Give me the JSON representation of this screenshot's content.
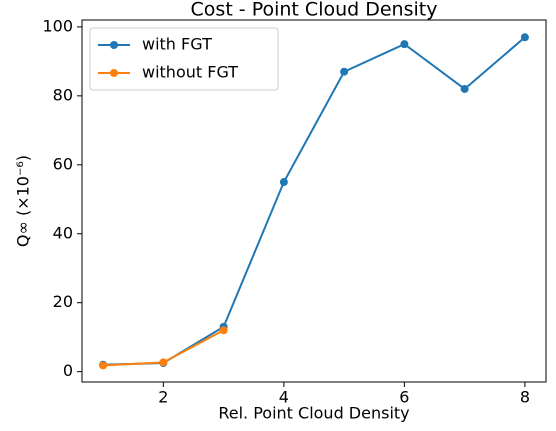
{
  "chart_data": {
    "type": "line",
    "title": "Cost - Point Cloud Density",
    "xlabel": "Rel. Point Cloud Density",
    "ylabel": "Q∞ (×10⁻⁶)",
    "series": [
      {
        "name": "with FGT",
        "color": "#1f77b4",
        "x": [
          1,
          2,
          3,
          4,
          5,
          6,
          7,
          8
        ],
        "values": [
          2,
          2.5,
          13,
          55,
          87,
          95,
          82,
          97
        ]
      },
      {
        "name": "without FGT",
        "color": "#ff7f0e",
        "x": [
          1,
          2,
          3
        ],
        "values": [
          1.8,
          2.7,
          12
        ]
      }
    ],
    "xlim": [
      0.65,
      8.35
    ],
    "xticks": [
      2,
      4,
      6,
      8
    ],
    "ylim": [
      -3,
      102
    ],
    "yticks": [
      0,
      20,
      40,
      60,
      80,
      100
    ],
    "legend": "upper left"
  }
}
